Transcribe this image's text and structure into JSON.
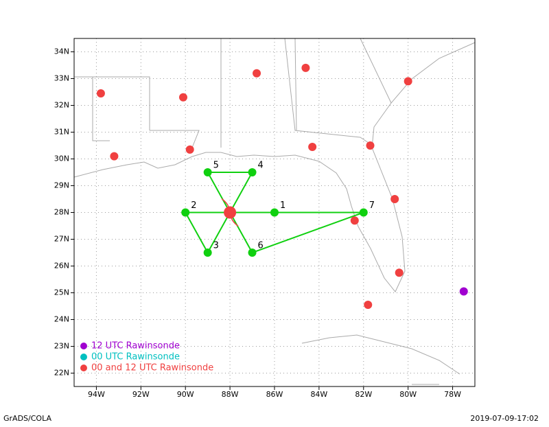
{
  "chart_data": {
    "type": "map",
    "xlim": [
      -95,
      -77
    ],
    "ylim": [
      21.5,
      34.5
    ],
    "xticks": [
      {
        "value": -94,
        "label": "94W"
      },
      {
        "value": -92,
        "label": "92W"
      },
      {
        "value": -90,
        "label": "90W"
      },
      {
        "value": -88,
        "label": "88W"
      },
      {
        "value": -86,
        "label": "86W"
      },
      {
        "value": -84,
        "label": "84W"
      },
      {
        "value": -82,
        "label": "82W"
      },
      {
        "value": -80,
        "label": "80W"
      },
      {
        "value": -78,
        "label": "78W"
      }
    ],
    "yticks": [
      {
        "value": 22,
        "label": "22N"
      },
      {
        "value": 23,
        "label": "23N"
      },
      {
        "value": 24,
        "label": "24N"
      },
      {
        "value": 25,
        "label": "25N"
      },
      {
        "value": 26,
        "label": "26N"
      },
      {
        "value": 27,
        "label": "27N"
      },
      {
        "value": 28,
        "label": "28N"
      },
      {
        "value": 29,
        "label": "29N"
      },
      {
        "value": 30,
        "label": "30N"
      },
      {
        "value": 31,
        "label": "31N"
      },
      {
        "value": 32,
        "label": "32N"
      },
      {
        "value": 33,
        "label": "33N"
      },
      {
        "value": 34,
        "label": "34N"
      }
    ],
    "grid": true,
    "series": [
      {
        "name": "12 UTC Rawinsonde",
        "color": "#a000d0",
        "x": [
          -77.5
        ],
        "values": [
          25.05
        ]
      },
      {
        "name": "00 UTC Rawinsonde",
        "color": "#00c0c0",
        "x": [],
        "values": []
      },
      {
        "name": "00 and 12 UTC Rawinsonde",
        "color": "#f04040",
        "x": [
          -93.8,
          -93.2,
          -90.1,
          -89.8,
          -86.8,
          -84.6,
          -84.3,
          -81.7,
          -80.0,
          -80.6,
          -82.4,
          -80.4,
          -81.8
        ],
        "values": [
          32.45,
          30.1,
          32.3,
          30.35,
          33.2,
          33.4,
          30.45,
          30.5,
          32.9,
          28.5,
          27.7,
          25.75,
          24.55
        ]
      }
    ],
    "center": {
      "x": -88,
      "y": 28,
      "color": "#f04040"
    },
    "dropsondes": {
      "color": "#10d010",
      "labels": [
        "1",
        "2",
        "3",
        "4",
        "5",
        "6",
        "7"
      ],
      "x": [
        -86,
        -90,
        -89,
        -87,
        -89,
        -87,
        -82
      ],
      "values": [
        28,
        28,
        26.5,
        29.5,
        29.5,
        26.5,
        28
      ]
    }
  },
  "footer": {
    "left": "GrADS/COLA",
    "right": "2019-07-09-17:02"
  }
}
